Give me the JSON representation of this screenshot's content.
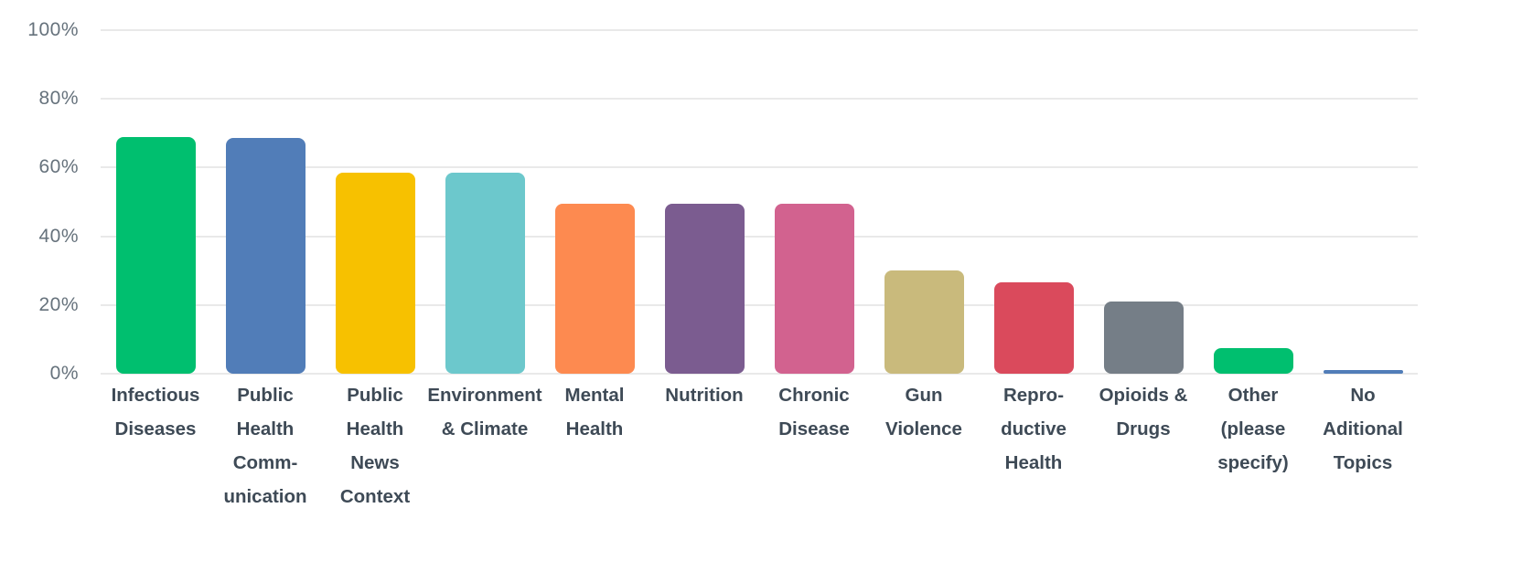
{
  "chart_data": {
    "type": "bar",
    "title": "",
    "xlabel": "",
    "ylabel": "",
    "unit": "%",
    "ylim": [
      0,
      100
    ],
    "grid": "horizontal",
    "legend": "none",
    "yticks": [
      {
        "value": 0,
        "label": "0%"
      },
      {
        "value": 20,
        "label": "20%"
      },
      {
        "value": 40,
        "label": "40%"
      },
      {
        "value": 60,
        "label": "60%"
      },
      {
        "value": 80,
        "label": "80%"
      },
      {
        "value": 100,
        "label": "100%"
      }
    ],
    "categories": [
      "Infectious Diseases",
      "Public Health Communication",
      "Public Health News Context",
      "Environment & Climate",
      "Mental Health",
      "Nutrition",
      "Chronic Disease",
      "Gun Violence",
      "Reproductive Health",
      "Opioids & Drugs",
      "Other (please specify)",
      "No Aditional Topics"
    ],
    "bars": [
      {
        "category": "Infectious Diseases",
        "label_lines": [
          "Infectious",
          "Diseases"
        ],
        "value": 69,
        "color": "#00BF6F"
      },
      {
        "category": "Public Health Communication",
        "label_lines": [
          "Public",
          "Health",
          "Comm-",
          "unication"
        ],
        "value": 68.5,
        "color": "#517DB8"
      },
      {
        "category": "Public Health News Context",
        "label_lines": [
          "Public",
          "Health",
          "News",
          "Context"
        ],
        "value": 58.5,
        "color": "#F7C100"
      },
      {
        "category": "Environment & Climate",
        "label_lines": [
          "Environment",
          "& Climate"
        ],
        "value": 58.5,
        "color": "#6CC8CC"
      },
      {
        "category": "Mental Health",
        "label_lines": [
          "Mental",
          "Health"
        ],
        "value": 49.5,
        "color": "#FD8A50"
      },
      {
        "category": "Nutrition",
        "label_lines": [
          "Nutrition"
        ],
        "value": 49.5,
        "color": "#7B5C90"
      },
      {
        "category": "Chronic Disease",
        "label_lines": [
          "Chronic",
          "Disease"
        ],
        "value": 49.5,
        "color": "#D2628F"
      },
      {
        "category": "Gun Violence",
        "label_lines": [
          "Gun",
          "Violence"
        ],
        "value": 30,
        "color": "#C9BA7C"
      },
      {
        "category": "Reproductive Health",
        "label_lines": [
          "Repro-",
          "ductive",
          "Health"
        ],
        "value": 26.5,
        "color": "#DA4A5C"
      },
      {
        "category": "Opioids & Drugs",
        "label_lines": [
          "Opioids &",
          "Drugs"
        ],
        "value": 21,
        "color": "#757E87"
      },
      {
        "category": "Other (please specify)",
        "label_lines": [
          "Other",
          "(please",
          "specify)"
        ],
        "value": 7.5,
        "color": "#00BF6F"
      },
      {
        "category": "No Aditional Topics",
        "label_lines": [
          "No",
          "Aditional",
          "Topics"
        ],
        "value": 1,
        "color": "#517DB8"
      }
    ],
    "colors": {
      "grid_line": "#E9E9E9",
      "axis_tick_label": "#66727C",
      "category_label": "#3E4A56",
      "background": "#FFFFFF"
    }
  }
}
